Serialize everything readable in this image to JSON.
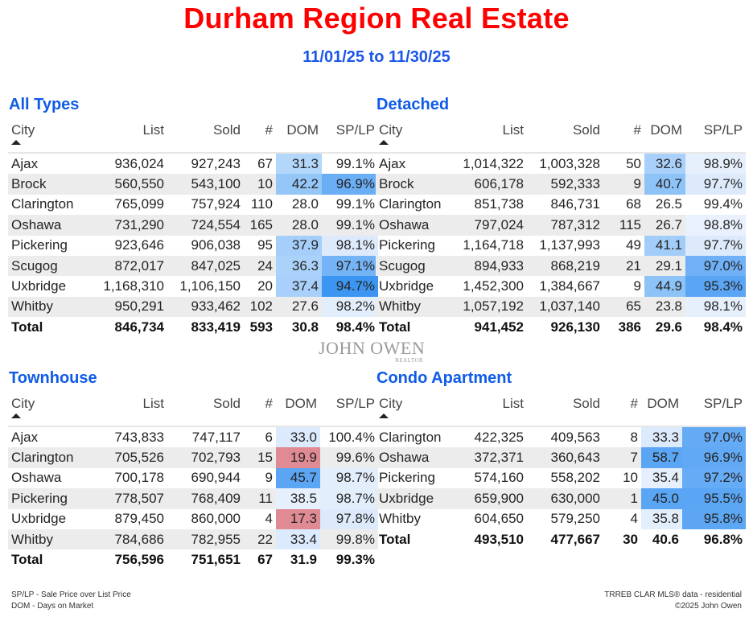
{
  "header": {
    "title": "Durham Region Real Estate",
    "date_range": "11/01/25 to 11/30/25"
  },
  "columns": [
    "City",
    "List",
    "Sold",
    "#",
    "DOM",
    "SP/LP"
  ],
  "sort_icon": "sort-ascending-triangle-icon",
  "tables": [
    {
      "title": "All Types",
      "rows": [
        {
          "city": "Ajax",
          "list": "936,024",
          "sold": "927,243",
          "count": "67",
          "dom": "31.3",
          "splp": "99.1%",
          "dom_bg": "#b3d7fb",
          "splp_bg": ""
        },
        {
          "city": "Brock",
          "list": "560,550",
          "sold": "543,100",
          "count": "10",
          "dom": "42.2",
          "splp": "96.9%",
          "dom_bg": "#94c6f8",
          "splp_bg": "#6aaef5"
        },
        {
          "city": "Clarington",
          "list": "765,099",
          "sold": "757,924",
          "count": "110",
          "dom": "28.0",
          "splp": "99.1%",
          "dom_bg": "",
          "splp_bg": ""
        },
        {
          "city": "Oshawa",
          "list": "731,290",
          "sold": "724,554",
          "count": "165",
          "dom": "28.0",
          "splp": "99.1%",
          "dom_bg": "",
          "splp_bg": ""
        },
        {
          "city": "Pickering",
          "list": "923,646",
          "sold": "906,038",
          "count": "95",
          "dom": "37.9",
          "splp": "98.1%",
          "dom_bg": "#a5cffa",
          "splp_bg": "#dceafc"
        },
        {
          "city": "Scugog",
          "list": "872,017",
          "sold": "847,025",
          "count": "24",
          "dom": "36.3",
          "splp": "97.1%",
          "dom_bg": "#abd2fa",
          "splp_bg": "#74b3f6"
        },
        {
          "city": "Uxbridge",
          "list": "1,168,310",
          "sold": "1,106,150",
          "count": "20",
          "dom": "37.4",
          "splp": "94.7%",
          "dom_bg": "#a8d0fa",
          "splp_bg": "#3c95f0"
        },
        {
          "city": "Whitby",
          "list": "950,291",
          "sold": "933,462",
          "count": "102",
          "dom": "27.6",
          "splp": "98.2%",
          "dom_bg": "",
          "splp_bg": "#e3eefc"
        }
      ],
      "total": {
        "city": "Total",
        "list": "846,734",
        "sold": "833,419",
        "count": "593",
        "dom": "30.8",
        "splp": "98.4%"
      }
    },
    {
      "title": "Detached",
      "rows": [
        {
          "city": "Ajax",
          "list": "1,014,322",
          "sold": "1,003,328",
          "count": "50",
          "dom": "32.6",
          "splp": "98.9%",
          "dom_bg": "#a9d0fa",
          "splp_bg": "#e6f0fd"
        },
        {
          "city": "Brock",
          "list": "606,178",
          "sold": "592,333",
          "count": "9",
          "dom": "40.7",
          "splp": "97.7%",
          "dom_bg": "#8ec3f8",
          "splp_bg": "#dceafc"
        },
        {
          "city": "Clarington",
          "list": "851,738",
          "sold": "846,731",
          "count": "68",
          "dom": "26.5",
          "splp": "99.4%",
          "dom_bg": "",
          "splp_bg": ""
        },
        {
          "city": "Oshawa",
          "list": "797,024",
          "sold": "787,312",
          "count": "115",
          "dom": "26.7",
          "splp": "98.8%",
          "dom_bg": "",
          "splp_bg": "#e8f1fd"
        },
        {
          "city": "Pickering",
          "list": "1,164,718",
          "sold": "1,137,993",
          "count": "49",
          "dom": "41.1",
          "splp": "97.7%",
          "dom_bg": "#a3cdf9",
          "splp_bg": "#dceafc"
        },
        {
          "city": "Scugog",
          "list": "894,933",
          "sold": "868,219",
          "count": "21",
          "dom": "29.1",
          "splp": "97.0%",
          "dom_bg": "",
          "splp_bg": "#6fb0f6"
        },
        {
          "city": "Uxbridge",
          "list": "1,452,300",
          "sold": "1,384,667",
          "count": "9",
          "dom": "44.9",
          "splp": "95.3%",
          "dom_bg": "#8ec3f8",
          "splp_bg": "#5aa5f4"
        },
        {
          "city": "Whitby",
          "list": "1,057,192",
          "sold": "1,037,140",
          "count": "65",
          "dom": "23.8",
          "splp": "98.1%",
          "dom_bg": "",
          "splp_bg": "#e6f0fd"
        }
      ],
      "total": {
        "city": "Total",
        "list": "941,452",
        "sold": "926,130",
        "count": "386",
        "dom": "29.6",
        "splp": "98.4%"
      }
    },
    {
      "title": "Townhouse",
      "rows": [
        {
          "city": "Ajax",
          "list": "743,833",
          "sold": "747,117",
          "count": "6",
          "dom": "33.0",
          "splp": "100.4%",
          "dom_bg": "#dbeafc",
          "splp_bg": ""
        },
        {
          "city": "Clarington",
          "list": "705,526",
          "sold": "702,793",
          "count": "15",
          "dom": "19.9",
          "splp": "99.6%",
          "dom_bg": "#e08a94",
          "splp_bg": ""
        },
        {
          "city": "Oshawa",
          "list": "700,178",
          "sold": "690,944",
          "count": "9",
          "dom": "45.7",
          "splp": "98.7%",
          "dom_bg": "#5aa5f4",
          "splp_bg": "#e3eefc"
        },
        {
          "city": "Pickering",
          "list": "778,507",
          "sold": "768,409",
          "count": "11",
          "dom": "38.5",
          "splp": "98.7%",
          "dom_bg": "#e6f0fd",
          "splp_bg": "#e3eefc"
        },
        {
          "city": "Uxbridge",
          "list": "879,450",
          "sold": "860,000",
          "count": "4",
          "dom": "17.3",
          "splp": "97.8%",
          "dom_bg": "#e08a94",
          "splp_bg": "#dceafc"
        },
        {
          "city": "Whitby",
          "list": "784,686",
          "sold": "782,955",
          "count": "22",
          "dom": "33.4",
          "splp": "99.8%",
          "dom_bg": "#dbeafc",
          "splp_bg": ""
        }
      ],
      "total": {
        "city": "Total",
        "list": "756,596",
        "sold": "751,651",
        "count": "67",
        "dom": "31.9",
        "splp": "99.3%"
      }
    },
    {
      "title": "Condo Apartment",
      "rows": [
        {
          "city": "Clarington",
          "list": "422,325",
          "sold": "409,563",
          "count": "8",
          "dom": "33.3",
          "splp": "97.0%",
          "dom_bg": "#dbeafc",
          "splp_bg": "#64aaf5"
        },
        {
          "city": "Oshawa",
          "list": "372,371",
          "sold": "360,643",
          "count": "7",
          "dom": "58.7",
          "splp": "96.9%",
          "dom_bg": "#5aa5f4",
          "splp_bg": "#62a9f5"
        },
        {
          "city": "Pickering",
          "list": "574,160",
          "sold": "558,202",
          "count": "10",
          "dom": "35.4",
          "splp": "97.2%",
          "dom_bg": "#e6f0fd",
          "splp_bg": "#66abf5"
        },
        {
          "city": "Uxbridge",
          "list": "659,900",
          "sold": "630,000",
          "count": "1",
          "dom": "45.0",
          "splp": "95.5%",
          "dom_bg": "#5aa5f4",
          "splp_bg": "#5aa5f4"
        },
        {
          "city": "Whitby",
          "list": "604,650",
          "sold": "579,250",
          "count": "4",
          "dom": "35.8",
          "splp": "95.8%",
          "dom_bg": "#e3eefc",
          "splp_bg": "#5ca6f4"
        }
      ],
      "total": {
        "city": "Total",
        "list": "493,510",
        "sold": "477,667",
        "count": "30",
        "dom": "40.6",
        "splp": "96.8%"
      }
    }
  ],
  "logo": {
    "name": "JOHN OWEN",
    "sub": "REALTOR"
  },
  "footer": {
    "legend_splp": "SP/LP - Sale Price over List Price",
    "legend_dom": "DOM - Days on Market",
    "source": "TRREB CLAR MLS® data - residential",
    "copyright": "©2025 John Owen"
  }
}
